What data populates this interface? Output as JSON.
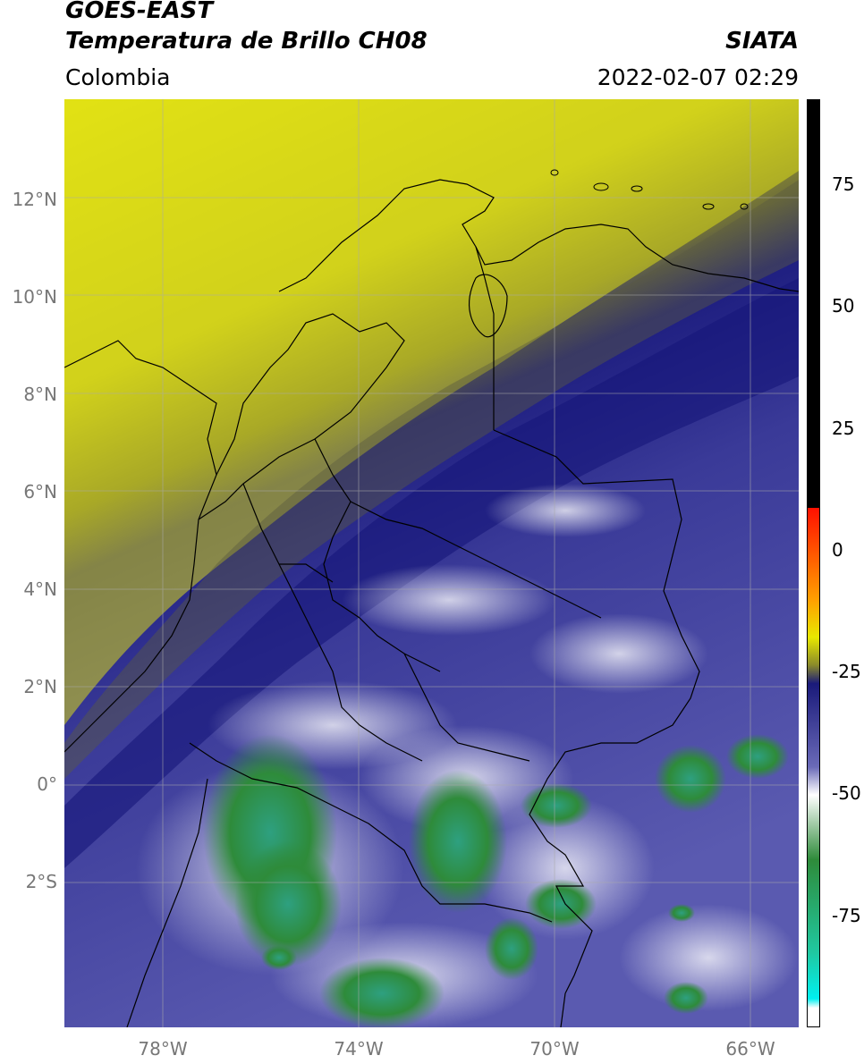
{
  "header": {
    "line1": "GOES-EAST",
    "line2": "Temperatura de Brillo CH08",
    "brand": "SIATA",
    "region": "Colombia",
    "datetime": "2022-02-07 02:29"
  },
  "map": {
    "lat_labels": [
      "12°N",
      "10°N",
      "8°N",
      "6°N",
      "4°N",
      "2°N",
      "0°",
      "2°S"
    ],
    "lon_labels": [
      "78°W",
      "74°W",
      "70°W",
      "66°W"
    ],
    "extent": {
      "lon_min": -80,
      "lon_max": -65,
      "lat_min": -5.0,
      "lat_max": 14
    }
  },
  "colorbar": {
    "ticks": [
      "75",
      "50",
      "25",
      "0",
      "-25",
      "-50",
      "-75"
    ],
    "colors": {
      "yellow": "#e8e800",
      "olive": "#8a8a2a",
      "navy": "#1a1a7a",
      "slate": "#6a6ab8",
      "white": "#ffffff",
      "green": "#2e8b3a",
      "teal": "#20c8a0",
      "cyan": "#00f0f0",
      "red": "#ff1000",
      "orange": "#ffa000",
      "black": "#000000"
    }
  }
}
